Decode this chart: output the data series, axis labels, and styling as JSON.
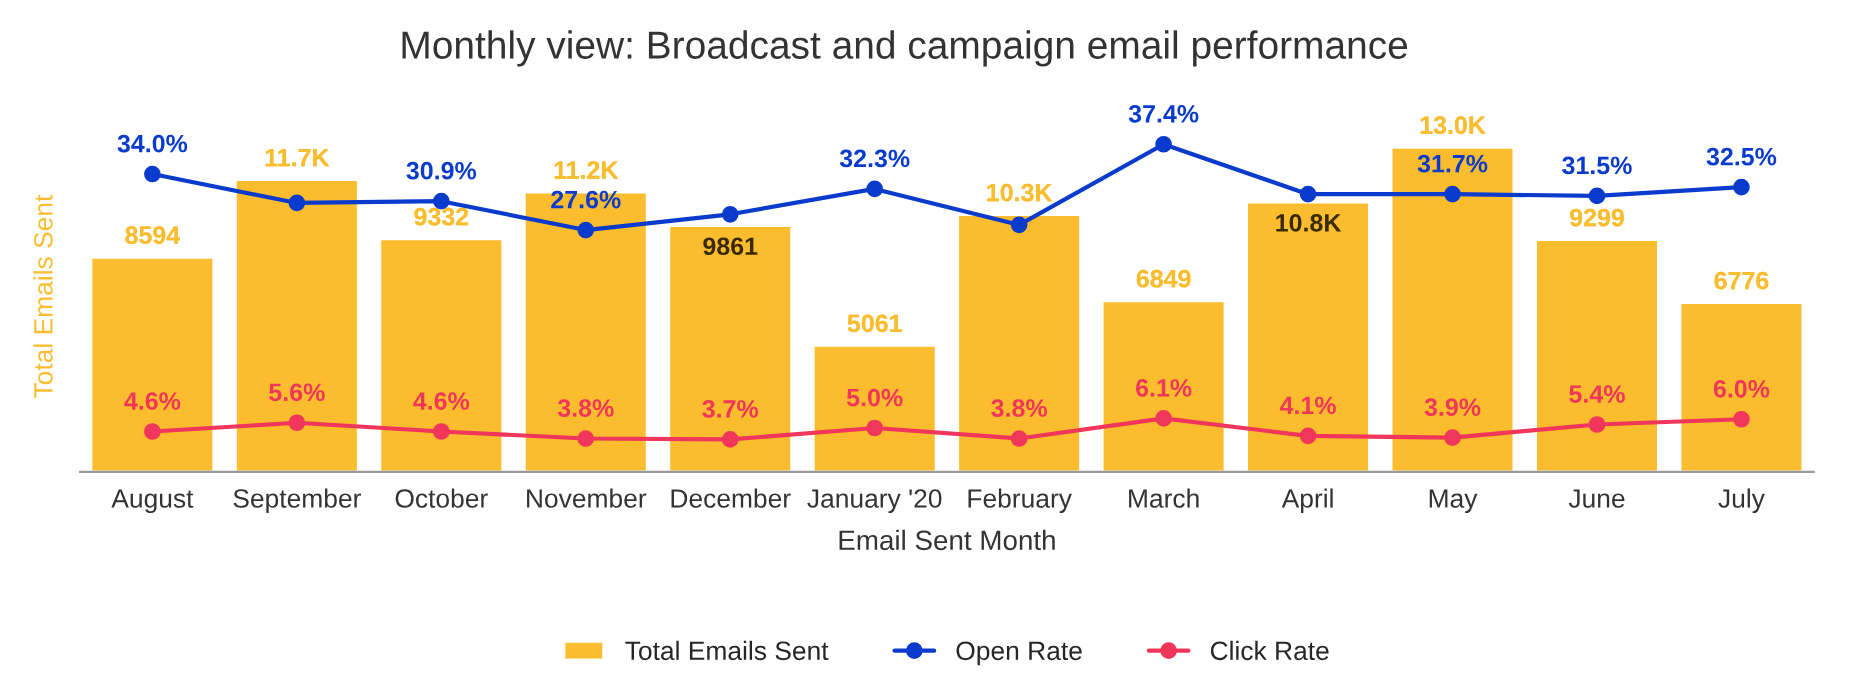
{
  "chart_data": {
    "type": "bar",
    "title": "Monthly view: Broadcast and campaign email performance",
    "xlabel": "Email Sent Month",
    "ylabel": "Total Emails Sent",
    "categories": [
      "August",
      "September",
      "October",
      "November",
      "December",
      "January '20",
      "February",
      "March",
      "April",
      "May",
      "June",
      "July"
    ],
    "series": [
      {
        "name": "Total Emails Sent",
        "color": "#fbbc2d",
        "values": [
          8594,
          11700,
          9332,
          11200,
          9861,
          5061,
          10300,
          6849,
          10800,
          13000,
          9299,
          6776
        ],
        "value_labels": [
          "8594",
          "11.7K",
          "9332",
          "11.2K",
          "9861",
          "5061",
          "10.3K",
          "6849",
          "10.8K",
          "13.0K",
          "9299",
          "6776"
        ]
      },
      {
        "name": "Open Rate",
        "type": "line",
        "axis": "y2",
        "color": "#0a3bcc",
        "values": [
          34.0,
          30.7,
          30.9,
          27.6,
          29.4,
          32.3,
          28.2,
          37.4,
          31.7,
          31.7,
          31.5,
          32.5
        ],
        "value_labels": [
          "34.0%",
          null,
          "30.9%",
          "27.6%",
          null,
          "32.3%",
          null,
          "37.4%",
          null,
          "31.7%",
          "31.5%",
          "32.5%"
        ]
      },
      {
        "name": "Click Rate",
        "type": "line",
        "axis": "y2",
        "color": "#f0365a",
        "values": [
          4.6,
          5.6,
          4.6,
          3.8,
          3.7,
          5.0,
          3.8,
          6.1,
          4.1,
          3.9,
          5.4,
          6.0
        ],
        "value_labels": [
          "4.6%",
          "5.6%",
          "4.6%",
          "3.8%",
          "3.7%",
          "5.0%",
          "3.8%",
          "6.1%",
          "4.1%",
          "3.9%",
          "5.4%",
          "6.0%"
        ]
      }
    ],
    "tick_labels": "x",
    "marker": "circle",
    "line_style": "solid",
    "legend": "bottom"
  }
}
